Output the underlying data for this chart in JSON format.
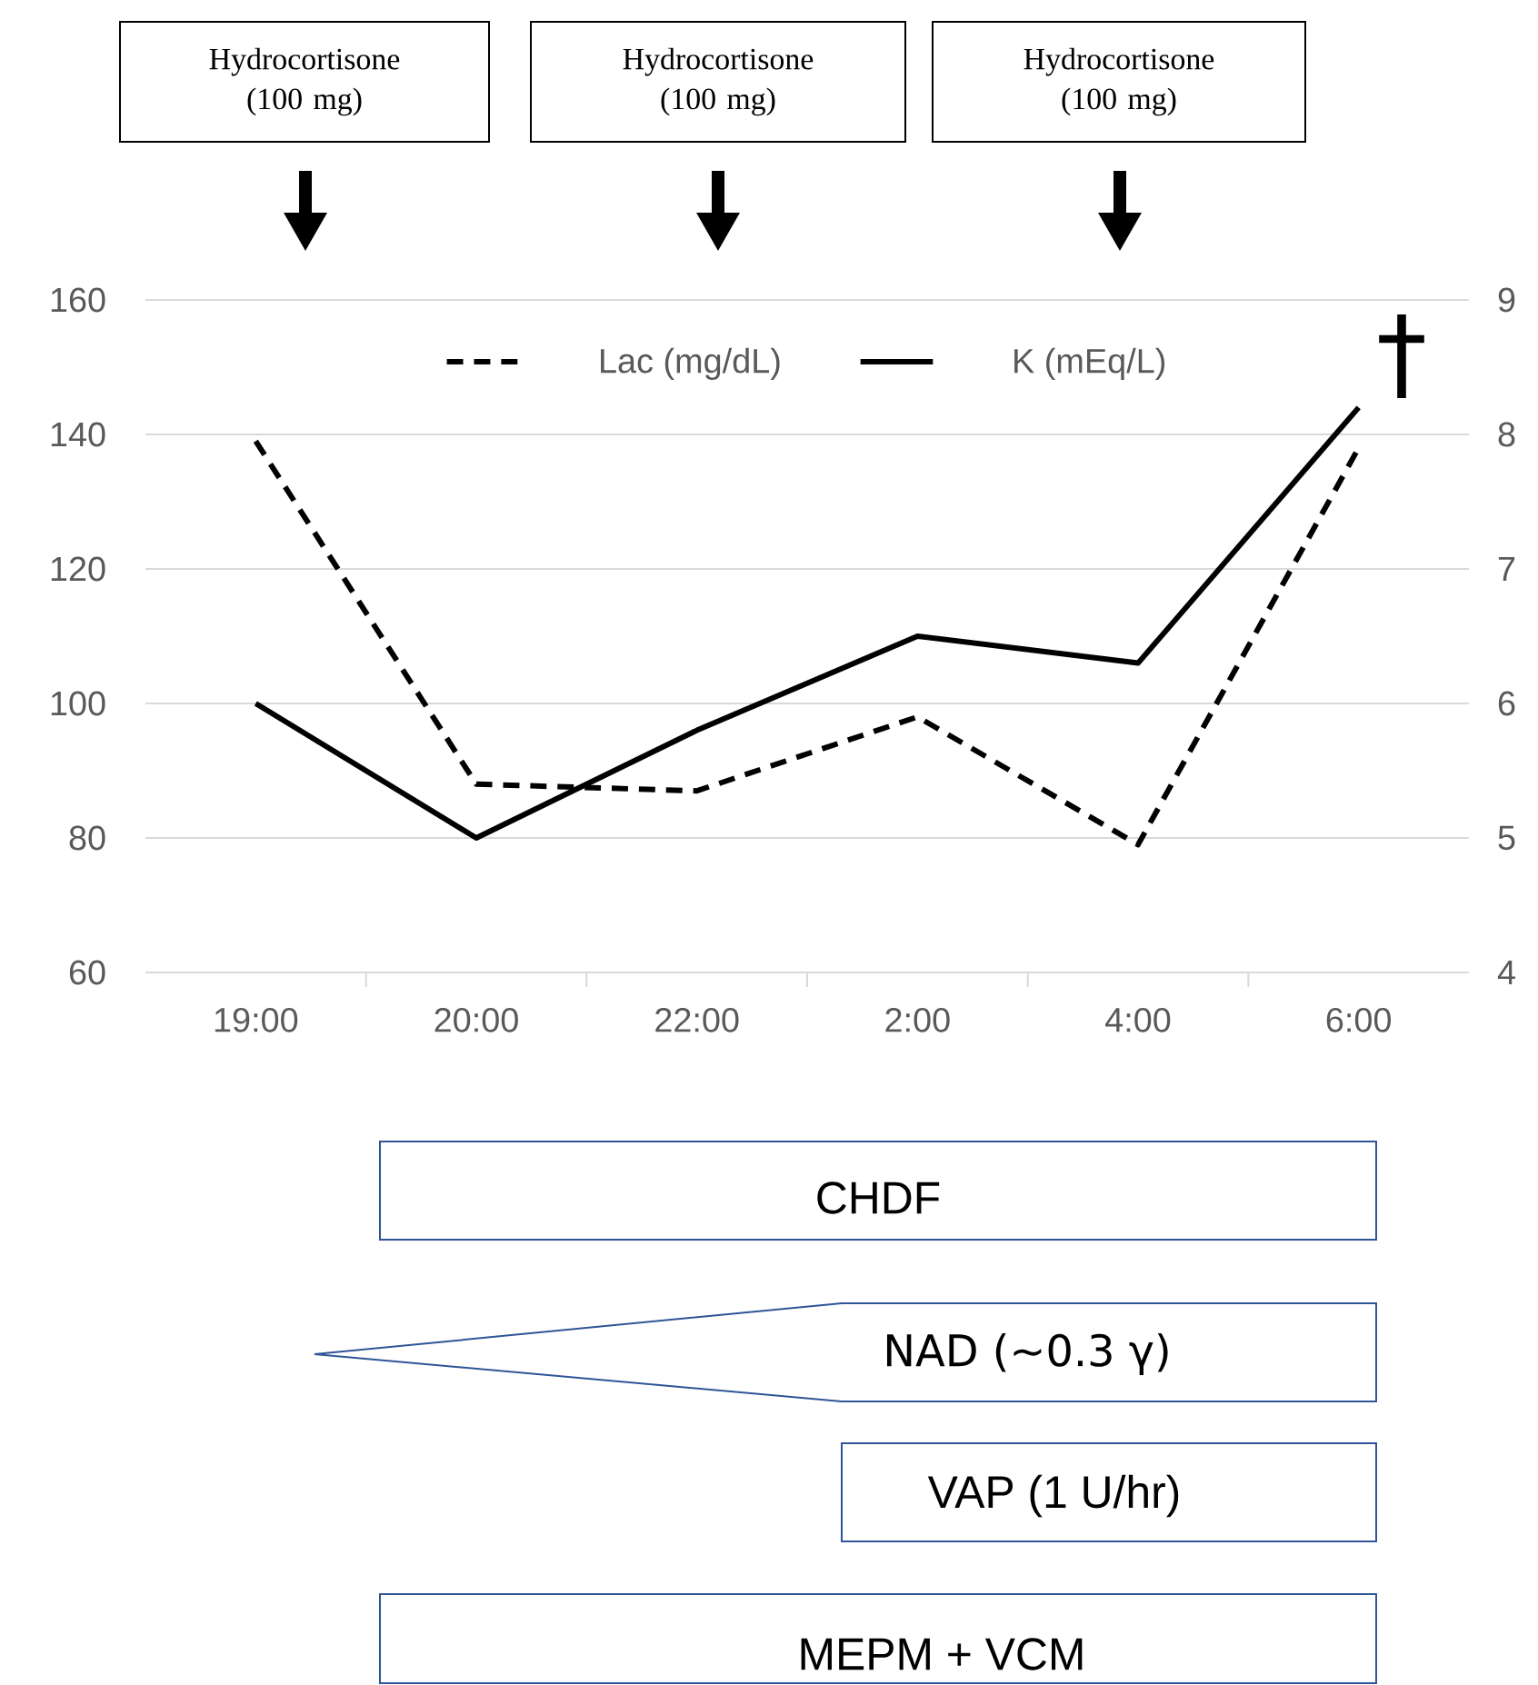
{
  "chart_data": {
    "type": "line",
    "categories": [
      "19:00",
      "20:00",
      "22:00",
      "2:00",
      "4:00",
      "6:00"
    ],
    "series": [
      {
        "name": "Lac (mg/dL)",
        "color": "#000000",
        "line_style": "dashed",
        "values": [
          139,
          88,
          87,
          98,
          79,
          138
        ]
      },
      {
        "name": "K (mEq/L)",
        "color": "#000000",
        "line_style": "solid",
        "axis": "y2",
        "values": [
          6.0,
          5.0,
          5.8,
          6.5,
          6.3,
          8.2
        ]
      }
    ],
    "ylim": [
      60,
      160
    ],
    "yticks": [
      60,
      80,
      100,
      120,
      140,
      160
    ],
    "y2lim": [
      4,
      9
    ],
    "y2ticks": [
      4,
      5,
      6,
      7,
      8,
      9
    ],
    "grid": "y",
    "legend": "top",
    "annotations": [
      "Hydrocortisone (100 mg)",
      "Hydrocortisone (100 mg)",
      "Hydrocortisone (100 mg)",
      "†",
      "CHDF",
      "NAD (∼0.3 γ)",
      "VAP (1 U/hr)",
      "MEPM + VCM"
    ]
  }
}
